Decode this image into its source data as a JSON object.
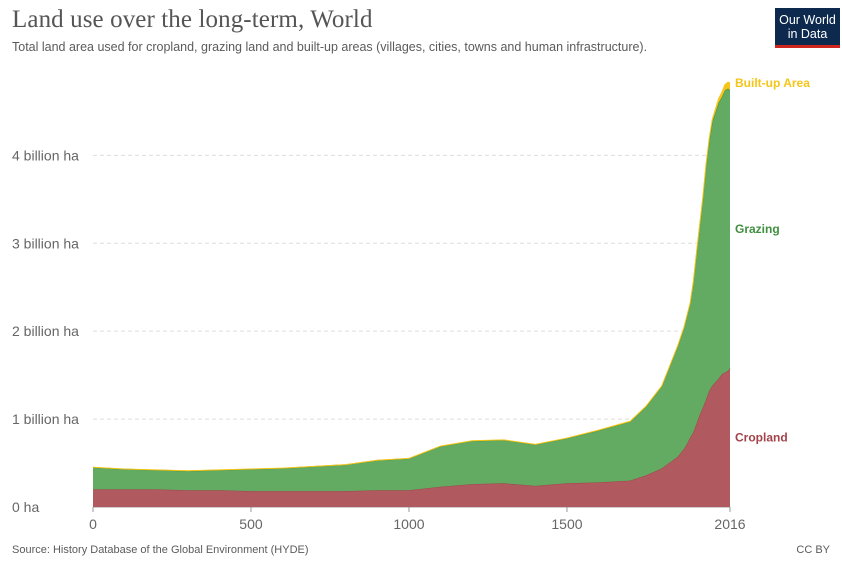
{
  "header": {
    "title": "Land use over the long-term, World",
    "subtitle": "Total land area used for cropland, grazing land and built-up areas (villages, cities, towns and human infrastructure)."
  },
  "logo": {
    "line1": "Our World",
    "line2": "in Data",
    "bg_color": "#0d2a4e",
    "accent_color": "#ce261e"
  },
  "footer": {
    "source": "Source: History Database of the Global Environment (HYDE)",
    "license": "CC BY"
  },
  "chart_data": {
    "type": "area",
    "stacked": true,
    "title": "Land use over the long-term, World",
    "subtitle": "Total land area used for cropland, grazing land and built-up areas (villages, cities, towns and human infrastructure).",
    "xlabel": "",
    "ylabel": "",
    "unit": "ha",
    "xlim": [
      0,
      2016
    ],
    "ylim": [
      0,
      4800000000
    ],
    "x_ticks": [
      0,
      500,
      1000,
      1500,
      2016
    ],
    "x_tick_labels": [
      "0",
      "500",
      "1000",
      "1500",
      "2016"
    ],
    "y_ticks": [
      0,
      1000000000,
      2000000000,
      3000000000,
      4000000000
    ],
    "y_tick_labels": [
      "0 ha",
      "1 billion ha",
      "2 billion ha",
      "3 billion ha",
      "4 billion ha"
    ],
    "grid": "horizontal dashed",
    "legend": "labels at right end of series",
    "x": [
      0,
      100,
      200,
      300,
      400,
      500,
      600,
      700,
      800,
      900,
      1000,
      1100,
      1200,
      1300,
      1400,
      1500,
      1600,
      1700,
      1750,
      1800,
      1850,
      1870,
      1880,
      1890,
      1900,
      1910,
      1920,
      1930,
      1940,
      1950,
      1960,
      1970,
      1980,
      1990,
      2000,
      2010,
      2016
    ],
    "series": [
      {
        "name": "Cropland",
        "color": "#a2434b",
        "fill": "#b05a60",
        "values": [
          0.2,
          0.2,
          0.2,
          0.19,
          0.19,
          0.18,
          0.18,
          0.18,
          0.18,
          0.19,
          0.19,
          0.23,
          0.26,
          0.27,
          0.24,
          0.27,
          0.28,
          0.3,
          0.36,
          0.44,
          0.57,
          0.66,
          0.72,
          0.79,
          0.85,
          0.95,
          1.05,
          1.13,
          1.22,
          1.32,
          1.38,
          1.42,
          1.46,
          1.51,
          1.53,
          1.55,
          1.58
        ]
      },
      {
        "name": "Grazing",
        "color": "#3f8f3f",
        "fill": "#63ab63",
        "values": [
          0.25,
          0.23,
          0.22,
          0.22,
          0.23,
          0.25,
          0.26,
          0.28,
          0.3,
          0.34,
          0.36,
          0.46,
          0.49,
          0.49,
          0.47,
          0.51,
          0.59,
          0.67,
          0.78,
          0.93,
          1.25,
          1.37,
          1.45,
          1.52,
          1.7,
          1.93,
          2.14,
          2.37,
          2.65,
          2.84,
          3.0,
          3.07,
          3.14,
          3.15,
          3.21,
          3.21,
          3.16
        ]
      },
      {
        "name": "Built-up Area",
        "color": "#f5c518",
        "fill": "#f5c518",
        "values": [
          0.002,
          0.002,
          0.002,
          0.002,
          0.002,
          0.002,
          0.002,
          0.002,
          0.002,
          0.002,
          0.003,
          0.003,
          0.003,
          0.003,
          0.003,
          0.004,
          0.004,
          0.005,
          0.006,
          0.007,
          0.009,
          0.01,
          0.011,
          0.012,
          0.014,
          0.016,
          0.018,
          0.02,
          0.023,
          0.027,
          0.032,
          0.038,
          0.045,
          0.054,
          0.063,
          0.073,
          0.08
        ]
      }
    ],
    "value_scale": "billion ha"
  }
}
